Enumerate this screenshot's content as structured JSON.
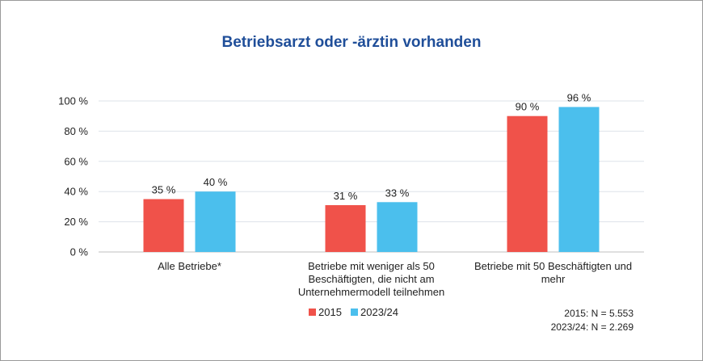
{
  "chart_data": {
    "type": "bar",
    "title": "Betriebsarzt oder -ärztin vorhanden",
    "categories": [
      [
        "Alle Betriebe*"
      ],
      [
        "Betriebe mit weniger als 50",
        "Beschäftigten, die nicht am",
        "Unternehmermodell teilnehmen"
      ],
      [
        "Betriebe mit 50 Beschäftigten und",
        "mehr"
      ]
    ],
    "series": [
      {
        "name": "2015",
        "color": "#f0524a",
        "values": [
          35,
          31,
          90
        ],
        "labels": [
          "35 %",
          "31 %",
          "90 %"
        ]
      },
      {
        "name": "2023/24",
        "color": "#4bbfed",
        "values": [
          40,
          33,
          96
        ],
        "labels": [
          "40 %",
          "33 %",
          "96 %"
        ]
      }
    ],
    "ylim": [
      0,
      100
    ],
    "yticks": [
      0,
      20,
      40,
      60,
      80,
      100
    ],
    "ytick_labels": [
      "0 %",
      "20 %",
      "40 %",
      "60 %",
      "80 %",
      "100 %"
    ],
    "gridlines": true,
    "legend_position": "bottom",
    "notes": [
      "2015: N = 5.553",
      "2023/24: N = 2.269"
    ]
  }
}
